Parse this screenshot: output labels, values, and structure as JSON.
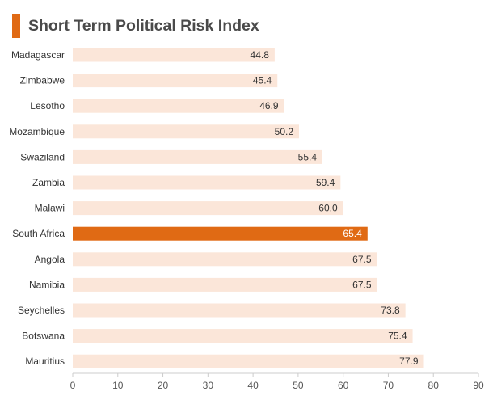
{
  "chart_data": {
    "type": "bar",
    "orientation": "horizontal",
    "title": "Short Term Political Risk Index",
    "categories": [
      "Madagascar",
      "Zimbabwe",
      "Lesotho",
      "Mozambique",
      "Swaziland",
      "Zambia",
      "Malawi",
      "South Africa",
      "Angola",
      "Namibia",
      "Seychelles",
      "Botswana",
      "Mauritius"
    ],
    "values": [
      44.8,
      45.4,
      46.9,
      50.2,
      55.4,
      59.4,
      60.0,
      65.4,
      67.5,
      67.5,
      73.8,
      75.4,
      77.9
    ],
    "value_labels": [
      "44.8",
      "45.4",
      "46.9",
      "50.2",
      "55.4",
      "59.4",
      "60.0",
      "65.4",
      "67.5",
      "67.5",
      "73.8",
      "75.4",
      "77.9"
    ],
    "highlight": "South Africa",
    "xlim": [
      0,
      90
    ],
    "xticks": [
      0,
      10,
      20,
      30,
      40,
      50,
      60,
      70,
      80,
      90
    ],
    "xlabel": "",
    "ylabel": "",
    "grid": false,
    "colors": {
      "bar": "#fbe6d9",
      "highlight_bar": "#e06a14",
      "accent": "#e06a14",
      "axis": "#cccccc"
    }
  }
}
